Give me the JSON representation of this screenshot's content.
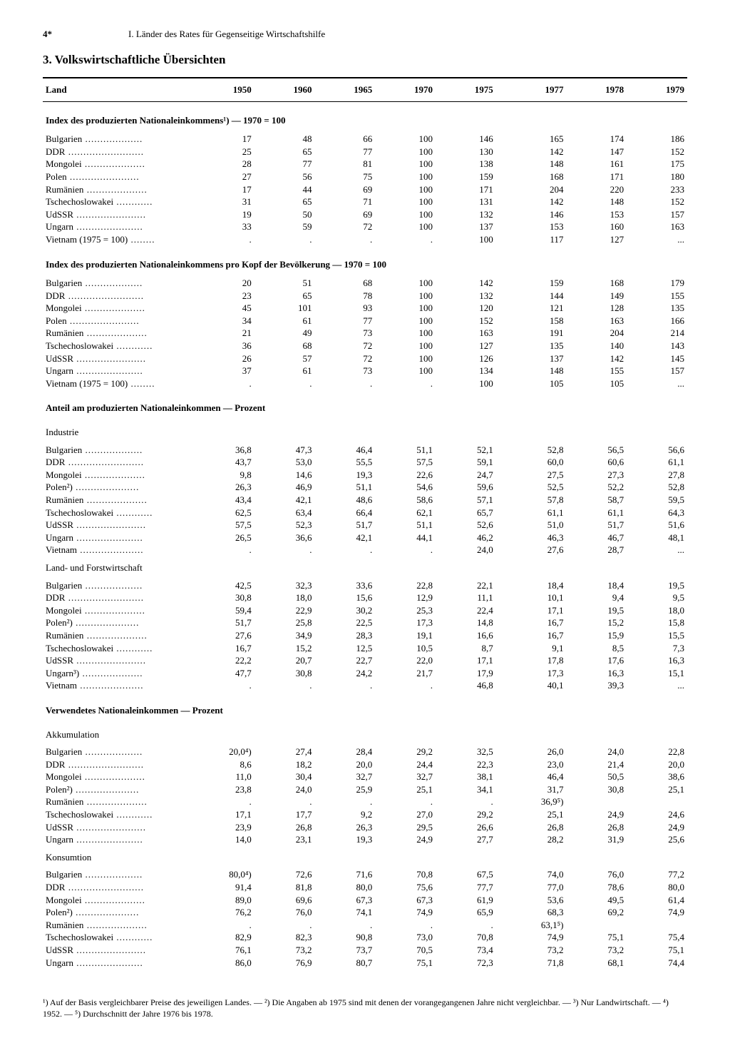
{
  "page_number": "4*",
  "chapter_title": "I. Länder des Rates für Gegenseitige Wirtschaftshilfe",
  "section_title": "3. Volkswirtschaftliche Übersichten",
  "col_head": "Land",
  "years": [
    "1950",
    "1960",
    "1965",
    "1970",
    "1975",
    "1977",
    "1978",
    "1979"
  ],
  "sections": [
    {
      "title": "Index des produzierten Nationaleinkommens¹) — 1970 = 100",
      "rows": [
        {
          "c": "Bulgarien",
          "v": [
            "17",
            "48",
            "66",
            "100",
            "146",
            "165",
            "174",
            "186"
          ]
        },
        {
          "c": "DDR",
          "v": [
            "25",
            "65",
            "77",
            "100",
            "130",
            "142",
            "147",
            "152"
          ]
        },
        {
          "c": "Mongolei",
          "v": [
            "28",
            "77",
            "81",
            "100",
            "138",
            "148",
            "161",
            "175"
          ]
        },
        {
          "c": "Polen",
          "v": [
            "27",
            "56",
            "75",
            "100",
            "159",
            "168",
            "171",
            "180"
          ]
        },
        {
          "c": "Rumänien",
          "v": [
            "17",
            "44",
            "69",
            "100",
            "171",
            "204",
            "220",
            "233"
          ]
        },
        {
          "c": "Tschechoslowakei",
          "v": [
            "31",
            "65",
            "71",
            "100",
            "131",
            "142",
            "148",
            "152"
          ]
        },
        {
          "c": "UdSSR",
          "v": [
            "19",
            "50",
            "69",
            "100",
            "132",
            "146",
            "153",
            "157"
          ]
        },
        {
          "c": "Ungarn",
          "v": [
            "33",
            "59",
            "72",
            "100",
            "137",
            "153",
            "160",
            "163"
          ]
        },
        {
          "c": "Vietnam (1975 = 100)",
          "v": [
            ".",
            ".",
            ".",
            ".",
            "100",
            "117",
            "127",
            "..."
          ]
        }
      ]
    },
    {
      "title": "Index des produzierten Nationaleinkommens pro Kopf der Bevölkerung — 1970 = 100",
      "rows": [
        {
          "c": "Bulgarien",
          "v": [
            "20",
            "51",
            "68",
            "100",
            "142",
            "159",
            "168",
            "179"
          ]
        },
        {
          "c": "DDR",
          "v": [
            "23",
            "65",
            "78",
            "100",
            "132",
            "144",
            "149",
            "155"
          ]
        },
        {
          "c": "Mongolei",
          "v": [
            "45",
            "101",
            "93",
            "100",
            "120",
            "121",
            "128",
            "135"
          ]
        },
        {
          "c": "Polen",
          "v": [
            "34",
            "61",
            "77",
            "100",
            "152",
            "158",
            "163",
            "166"
          ]
        },
        {
          "c": "Rumänien",
          "v": [
            "21",
            "49",
            "73",
            "100",
            "163",
            "191",
            "204",
            "214"
          ]
        },
        {
          "c": "Tschechoslowakei",
          "v": [
            "36",
            "68",
            "72",
            "100",
            "127",
            "135",
            "140",
            "143"
          ]
        },
        {
          "c": "UdSSR",
          "v": [
            "26",
            "57",
            "72",
            "100",
            "126",
            "137",
            "142",
            "145"
          ]
        },
        {
          "c": "Ungarn",
          "v": [
            "37",
            "61",
            "73",
            "100",
            "134",
            "148",
            "155",
            "157"
          ]
        },
        {
          "c": "Vietnam (1975 = 100)",
          "v": [
            ".",
            ".",
            ".",
            ".",
            "100",
            "105",
            "105",
            "..."
          ]
        }
      ]
    },
    {
      "title": "Anteil am produzierten Nationaleinkommen — Prozent",
      "sub": "Industrie",
      "rows": [
        {
          "c": "Bulgarien",
          "v": [
            "36,8",
            "47,3",
            "46,4",
            "51,1",
            "52,1",
            "52,8",
            "56,5",
            "56,6"
          ]
        },
        {
          "c": "DDR",
          "v": [
            "43,7",
            "53,0",
            "55,5",
            "57,5",
            "59,1",
            "60,0",
            "60,6",
            "61,1"
          ]
        },
        {
          "c": "Mongolei",
          "v": [
            "9,8",
            "14,6",
            "19,3",
            "22,6",
            "24,7",
            "27,5",
            "27,3",
            "27,8"
          ]
        },
        {
          "c": "Polen²)",
          "v": [
            "26,3",
            "46,9",
            "51,1",
            "54,6",
            "59,6",
            "52,5",
            "52,2",
            "52,8"
          ]
        },
        {
          "c": "Rumänien",
          "v": [
            "43,4",
            "42,1",
            "48,6",
            "58,6",
            "57,1",
            "57,8",
            "58,7",
            "59,5"
          ]
        },
        {
          "c": "Tschechoslowakei",
          "v": [
            "62,5",
            "63,4",
            "66,4",
            "62,1",
            "65,7",
            "61,1",
            "61,1",
            "64,3"
          ]
        },
        {
          "c": "UdSSR",
          "v": [
            "57,5",
            "52,3",
            "51,7",
            "51,1",
            "52,6",
            "51,0",
            "51,7",
            "51,6"
          ]
        },
        {
          "c": "Ungarn",
          "v": [
            "26,5",
            "36,6",
            "42,1",
            "44,1",
            "46,2",
            "46,3",
            "46,7",
            "48,1"
          ]
        },
        {
          "c": "Vietnam",
          "v": [
            ".",
            ".",
            ".",
            ".",
            "24,0",
            "27,6",
            "28,7",
            "..."
          ]
        }
      ]
    },
    {
      "sub": "Land- und Forstwirtschaft",
      "rows": [
        {
          "c": "Bulgarien",
          "v": [
            "42,5",
            "32,3",
            "33,6",
            "22,8",
            "22,1",
            "18,4",
            "18,4",
            "19,5"
          ]
        },
        {
          "c": "DDR",
          "v": [
            "30,8",
            "18,0",
            "15,6",
            "12,9",
            "11,1",
            "10,1",
            "9,4",
            "9,5"
          ]
        },
        {
          "c": "Mongolei",
          "v": [
            "59,4",
            "22,9",
            "30,2",
            "25,3",
            "22,4",
            "17,1",
            "19,5",
            "18,0"
          ]
        },
        {
          "c": "Polen²)",
          "v": [
            "51,7",
            "25,8",
            "22,5",
            "17,3",
            "14,8",
            "16,7",
            "15,2",
            "15,8"
          ]
        },
        {
          "c": "Rumänien",
          "v": [
            "27,6",
            "34,9",
            "28,3",
            "19,1",
            "16,6",
            "16,7",
            "15,9",
            "15,5"
          ]
        },
        {
          "c": "Tschechoslowakei",
          "v": [
            "16,7",
            "15,2",
            "12,5",
            "10,5",
            "8,7",
            "9,1",
            "8,5",
            "7,3"
          ]
        },
        {
          "c": "UdSSR",
          "v": [
            "22,2",
            "20,7",
            "22,7",
            "22,0",
            "17,1",
            "17,8",
            "17,6",
            "16,3"
          ]
        },
        {
          "c": "Ungarn³)",
          "v": [
            "47,7",
            "30,8",
            "24,2",
            "21,7",
            "17,9",
            "17,3",
            "16,3",
            "15,1"
          ]
        },
        {
          "c": "Vietnam",
          "v": [
            ".",
            ".",
            ".",
            ".",
            "46,8",
            "40,1",
            "39,3",
            "..."
          ]
        }
      ]
    },
    {
      "title": "Verwendetes Nationaleinkommen — Prozent",
      "sub": "Akkumulation",
      "rows": [
        {
          "c": "Bulgarien",
          "v": [
            "20,0⁴)",
            "27,4",
            "28,4",
            "29,2",
            "32,5",
            "26,0",
            "24,0",
            "22,8"
          ]
        },
        {
          "c": "DDR",
          "v": [
            "8,6",
            "18,2",
            "20,0",
            "24,4",
            "22,3",
            "23,0",
            "21,4",
            "20,0"
          ]
        },
        {
          "c": "Mongolei",
          "v": [
            "11,0",
            "30,4",
            "32,7",
            "32,7",
            "38,1",
            "46,4",
            "50,5",
            "38,6"
          ]
        },
        {
          "c": "Polen²)",
          "v": [
            "23,8",
            "24,0",
            "25,9",
            "25,1",
            "34,1",
            "31,7",
            "30,8",
            "25,1"
          ]
        },
        {
          "c": "Rumänien",
          "v": [
            ".",
            ".",
            ".",
            ".",
            ".",
            "36,9⁵)",
            "",
            ""
          ]
        },
        {
          "c": "Tschechoslowakei",
          "v": [
            "17,1",
            "17,7",
            "9,2",
            "27,0",
            "29,2",
            "25,1",
            "24,9",
            "24,6"
          ]
        },
        {
          "c": "UdSSR",
          "v": [
            "23,9",
            "26,8",
            "26,3",
            "29,5",
            "26,6",
            "26,8",
            "26,8",
            "24,9"
          ]
        },
        {
          "c": "Ungarn",
          "v": [
            "14,0",
            "23,1",
            "19,3",
            "24,9",
            "27,7",
            "28,2",
            "31,9",
            "25,6"
          ]
        }
      ]
    },
    {
      "sub": "Konsumtion",
      "rows": [
        {
          "c": "Bulgarien",
          "v": [
            "80,0⁴)",
            "72,6",
            "71,6",
            "70,8",
            "67,5",
            "74,0",
            "76,0",
            "77,2"
          ]
        },
        {
          "c": "DDR",
          "v": [
            "91,4",
            "81,8",
            "80,0",
            "75,6",
            "77,7",
            "77,0",
            "78,6",
            "80,0"
          ]
        },
        {
          "c": "Mongolei",
          "v": [
            "89,0",
            "69,6",
            "67,3",
            "67,3",
            "61,9",
            "53,6",
            "49,5",
            "61,4"
          ]
        },
        {
          "c": "Polen²)",
          "v": [
            "76,2",
            "76,0",
            "74,1",
            "74,9",
            "65,9",
            "68,3",
            "69,2",
            "74,9"
          ]
        },
        {
          "c": "Rumänien",
          "v": [
            ".",
            ".",
            ".",
            ".",
            ".",
            "63,1⁵)",
            "",
            ""
          ]
        },
        {
          "c": "Tschechoslowakei",
          "v": [
            "82,9",
            "82,3",
            "90,8",
            "73,0",
            "70,8",
            "74,9",
            "75,1",
            "75,4"
          ]
        },
        {
          "c": "UdSSR",
          "v": [
            "76,1",
            "73,2",
            "73,7",
            "70,5",
            "73,4",
            "73,2",
            "73,2",
            "75,1"
          ]
        },
        {
          "c": "Ungarn",
          "v": [
            "86,0",
            "76,9",
            "80,7",
            "75,1",
            "72,3",
            "71,8",
            "68,1",
            "74,4"
          ]
        }
      ]
    }
  ],
  "footnotes": "¹) Auf der Basis vergleichbarer Preise des jeweiligen Landes. — ²) Die Angaben ab 1975 sind mit denen der vorangegangenen Jahre nicht vergleichbar. — ³) Nur Landwirtschaft. — ⁴) 1952. — ⁵) Durchschnitt der Jahre 1976 bis 1978."
}
